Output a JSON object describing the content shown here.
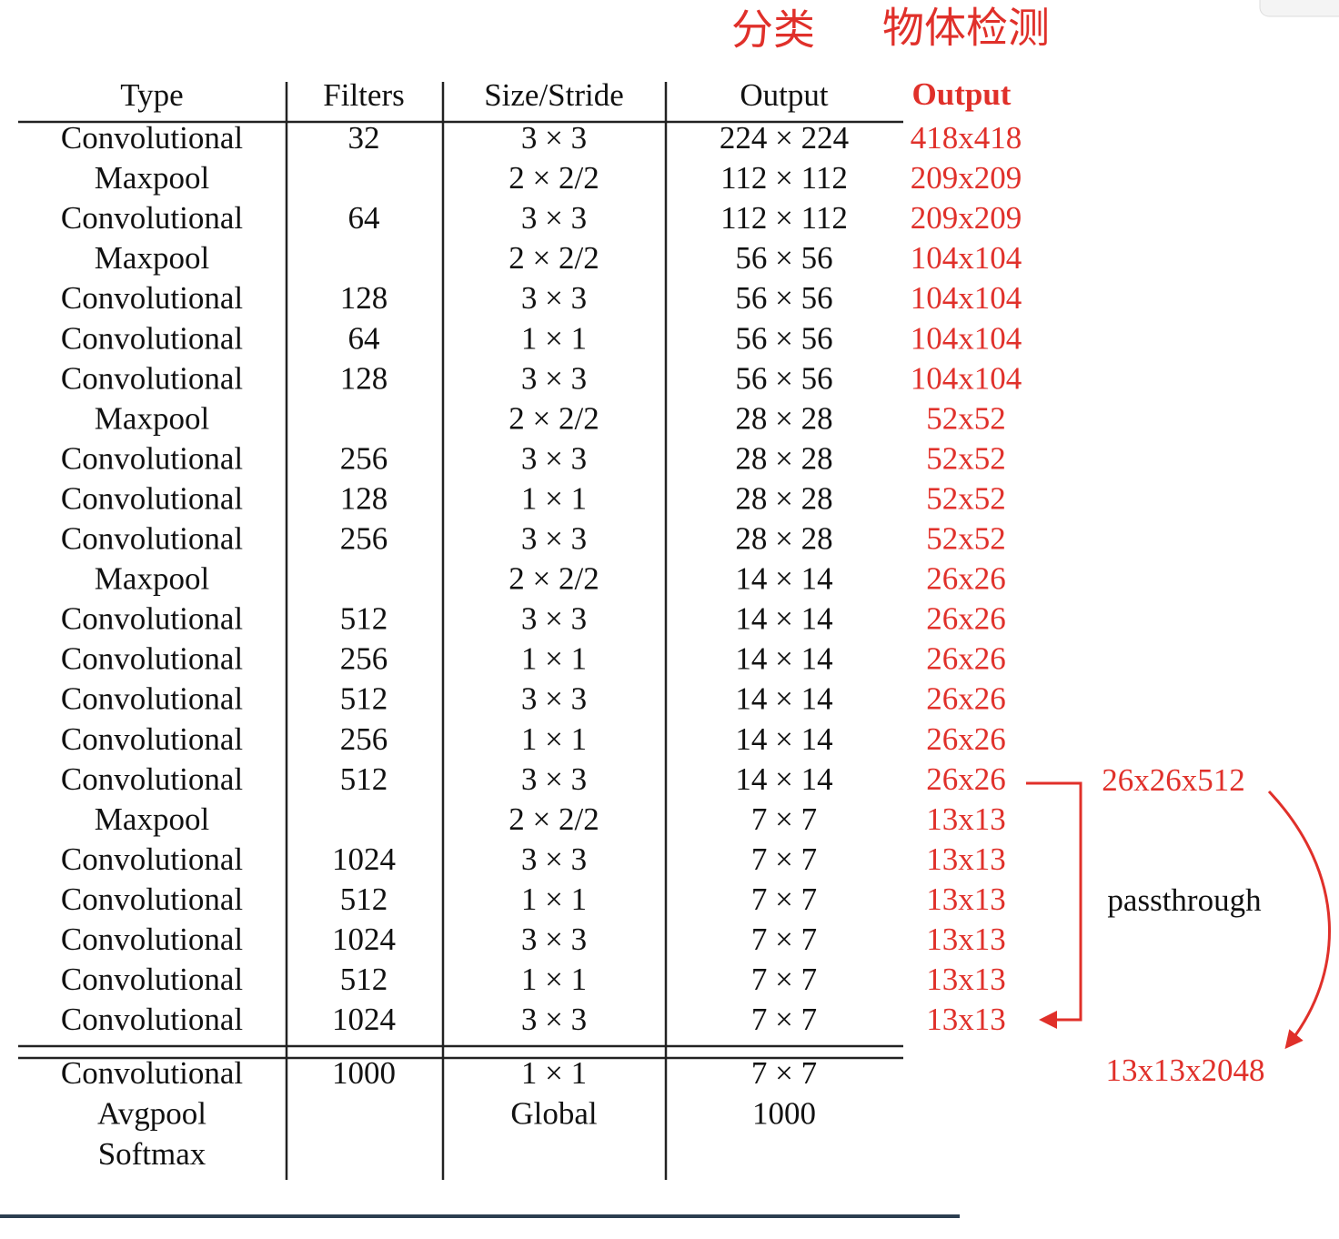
{
  "heading": {
    "classification": "分类",
    "detection": "物体检测"
  },
  "table": {
    "header": {
      "type": "Type",
      "filters": "Filters",
      "size": "Size/Stride",
      "output": "Output",
      "yolo": "Output"
    },
    "rows": [
      {
        "type": "Convolutional",
        "filters": "32",
        "size": "3 × 3",
        "output": "224 × 224",
        "yolo": "418x418"
      },
      {
        "type": "Maxpool",
        "size": "2 × 2/2",
        "output": "112 × 112",
        "yolo": "209x209"
      },
      {
        "type": "Convolutional",
        "filters": "64",
        "size": "3 × 3",
        "output": "112 × 112",
        "yolo": "209x209"
      },
      {
        "type": "Maxpool",
        "size": "2 × 2/2",
        "output": "56 × 56",
        "yolo": "104x104"
      },
      {
        "type": "Convolutional",
        "filters": "128",
        "size": "3 × 3",
        "output": "56 × 56",
        "yolo": "104x104"
      },
      {
        "type": "Convolutional",
        "filters": "64",
        "size": "1 × 1",
        "output": "56 × 56",
        "yolo": "104x104"
      },
      {
        "type": "Convolutional",
        "filters": "128",
        "size": "3 × 3",
        "output": "56 × 56",
        "yolo": "104x104"
      },
      {
        "type": "Maxpool",
        "size": "2 × 2/2",
        "output": "28 × 28",
        "yolo": "52x52"
      },
      {
        "type": "Convolutional",
        "filters": "256",
        "size": "3 × 3",
        "output": "28 × 28",
        "yolo": "52x52"
      },
      {
        "type": "Convolutional",
        "filters": "128",
        "size": "1 × 1",
        "output": "28 × 28",
        "yolo": "52x52"
      },
      {
        "type": "Convolutional",
        "filters": "256",
        "size": "3 × 3",
        "output": "28 × 28",
        "yolo": "52x52"
      },
      {
        "type": "Maxpool",
        "size": "2 × 2/2",
        "output": "14 × 14",
        "yolo": "26x26"
      },
      {
        "type": "Convolutional",
        "filters": "512",
        "size": "3 × 3",
        "output": "14 × 14",
        "yolo": "26x26"
      },
      {
        "type": "Convolutional",
        "filters": "256",
        "size": "1 × 1",
        "output": "14 × 14",
        "yolo": "26x26"
      },
      {
        "type": "Convolutional",
        "filters": "512",
        "size": "3 × 3",
        "output": "14 × 14",
        "yolo": "26x26"
      },
      {
        "type": "Convolutional",
        "filters": "256",
        "size": "1 × 1",
        "output": "14 × 14",
        "yolo": "26x26"
      },
      {
        "type": "Convolutional",
        "filters": "512",
        "size": "3 × 3",
        "output": "14 × 14",
        "yolo": "26x26"
      },
      {
        "type": "Maxpool",
        "size": "2 × 2/2",
        "output": "7 × 7",
        "yolo": "13x13"
      },
      {
        "type": "Convolutional",
        "filters": "1024",
        "size": "3 × 3",
        "output": "7 × 7",
        "yolo": "13x13"
      },
      {
        "type": "Convolutional",
        "filters": "512",
        "size": "1 × 1",
        "output": "7 × 7",
        "yolo": "13x13"
      },
      {
        "type": "Convolutional",
        "filters": "1024",
        "size": "3 × 3",
        "output": "7 × 7",
        "yolo": "13x13"
      },
      {
        "type": "Convolutional",
        "filters": "512",
        "size": "1 × 1",
        "output": "7 × 7",
        "yolo": "13x13"
      },
      {
        "type": "Convolutional",
        "filters": "1024",
        "size": "3 × 3",
        "output": "7 × 7",
        "yolo": "13x13"
      }
    ],
    "footer_rows": [
      {
        "type": "Convolutional",
        "filters": "1000",
        "size": "1 × 1",
        "output": "7 × 7"
      },
      {
        "type": "Avgpool",
        "size": "Global",
        "output": "1000"
      },
      {
        "type": "Softmax"
      }
    ]
  },
  "annotations": {
    "passthrough_input": "26x26x512",
    "passthrough_label": "passthrough",
    "passthrough_output": "13x13x2048"
  }
}
